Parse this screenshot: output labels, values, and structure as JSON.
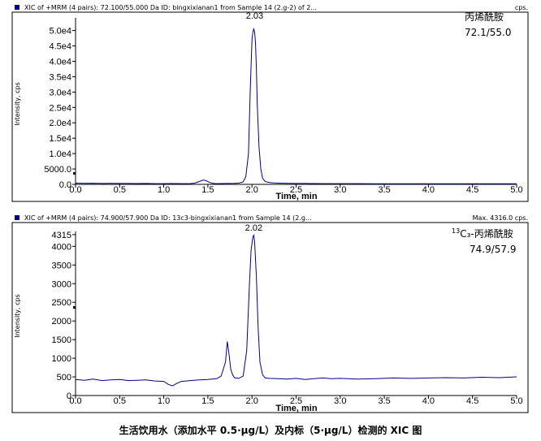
{
  "caption": "生活饮用水（添加水平 0.5·μg/L）及内标（5·μg/L）检测的 XIC 图",
  "colors": {
    "trace": "#00008b",
    "marker": "#000080"
  },
  "chart_data": [
    {
      "type": "line",
      "header_left": "XIC of +MRM (4 pairs): 72.100/55.000 Da ID: bingxixianan1 from Sample 14 (2.g-2) of 2...",
      "header_right": "cps.",
      "xlabel": "Time, min",
      "ylabel": "Intensity, cps",
      "xlim": [
        0,
        5.0
      ],
      "ylim": [
        0,
        52000
      ],
      "x_ticks": [
        0.0,
        0.5,
        1.0,
        1.5,
        2.0,
        2.5,
        3.0,
        3.5,
        4.0,
        4.5,
        5.0
      ],
      "x_tick_labels": [
        "0.0",
        "0.5",
        "1.0",
        "1.5",
        "2.0",
        "2.5",
        "3.0",
        "3.5",
        "4.0",
        "4.5",
        "5.0"
      ],
      "y_ticks": [
        0,
        5000,
        10000,
        15000,
        20000,
        25000,
        30000,
        35000,
        40000,
        45000,
        50000
      ],
      "y_tick_labels": [
        "0.0",
        "5000.0",
        "1.0e4",
        "1.5e4",
        "2.0e4",
        "2.5e4",
        "3.0e4",
        "3.5e4",
        "4.0e4",
        "4.5e4",
        "5.0e4"
      ],
      "peak_label": "2.03",
      "peak_label_x": 2.03,
      "annotation": [
        "丙烯酰胺",
        "72.1/55.0"
      ],
      "series": [
        {
          "x": [
            0.0,
            0.1,
            0.2,
            0.3,
            0.4,
            0.5,
            0.6,
            0.7,
            0.8,
            0.9,
            1.0,
            1.1,
            1.2,
            1.3,
            1.35,
            1.4,
            1.45,
            1.48,
            1.52,
            1.56,
            1.6,
            1.65,
            1.7,
            1.75,
            1.8,
            1.85,
            1.9,
            1.93,
            1.96,
            1.98,
            2.0,
            2.01,
            2.02,
            2.03,
            2.04,
            2.05,
            2.06,
            2.08,
            2.1,
            2.12,
            2.15,
            2.2,
            2.25,
            2.3,
            2.4,
            2.5,
            2.6,
            2.7,
            2.8,
            2.9,
            3.0,
            3.2,
            3.4,
            3.6,
            3.8,
            4.0,
            4.2,
            4.4,
            4.6,
            4.8,
            5.0
          ],
          "y": [
            400,
            350,
            380,
            300,
            320,
            280,
            300,
            260,
            280,
            250,
            240,
            260,
            250,
            240,
            400,
            900,
            1400,
            1200,
            600,
            300,
            250,
            260,
            280,
            300,
            320,
            400,
            800,
            2500,
            10000,
            30000,
            47000,
            49500,
            50500,
            49500,
            46000,
            38000,
            26000,
            12000,
            5000,
            2000,
            900,
            600,
            450,
            400,
            350,
            300,
            280,
            260,
            250,
            240,
            240,
            230,
            220,
            220,
            210,
            200,
            200,
            190,
            190,
            180,
            180
          ]
        }
      ]
    },
    {
      "type": "line",
      "header_left": "XIC of +MRM (4 pairs): 74.900/57.900 Da ID: 13c3-bingxixianan1 from Sample 14 (2.g...",
      "header_right": "Max. 4316.0 cps.",
      "xlabel": "Time, min",
      "ylabel": "Intensity, cps",
      "xlim": [
        0,
        5.0
      ],
      "ylim": [
        0,
        4400
      ],
      "x_ticks": [
        0.0,
        0.5,
        1.0,
        1.5,
        2.0,
        2.5,
        3.0,
        3.5,
        4.0,
        4.5,
        5.0
      ],
      "x_tick_labels": [
        "0.0",
        "0.5",
        "1.0",
        "1.5",
        "2.0",
        "2.5",
        "3.0",
        "3.5",
        "4.0",
        "4.5",
        "5.0"
      ],
      "y_ticks": [
        0,
        500,
        1000,
        1500,
        2000,
        2500,
        3000,
        3500,
        4000,
        4315
      ],
      "y_tick_labels": [
        "0",
        "500",
        "1000",
        "1500",
        "2000",
        "2500",
        "3000",
        "3500",
        "4000",
        "4315"
      ],
      "peak_label": "2.02",
      "peak_label_x": 2.02,
      "annotation_prefix": "13",
      "annotation": [
        "C₃-丙烯酰胺",
        "74.9/57.9"
      ],
      "series": [
        {
          "x": [
            0.0,
            0.1,
            0.2,
            0.3,
            0.4,
            0.5,
            0.6,
            0.7,
            0.8,
            0.9,
            1.0,
            1.05,
            1.1,
            1.15,
            1.2,
            1.3,
            1.4,
            1.5,
            1.6,
            1.65,
            1.7,
            1.72,
            1.74,
            1.76,
            1.78,
            1.8,
            1.85,
            1.9,
            1.94,
            1.97,
            1.99,
            2.01,
            2.02,
            2.03,
            2.05,
            2.07,
            2.09,
            2.12,
            2.15,
            2.2,
            2.3,
            2.4,
            2.5,
            2.6,
            2.7,
            2.8,
            2.9,
            3.0,
            3.2,
            3.4,
            3.6,
            3.8,
            4.0,
            4.2,
            4.4,
            4.6,
            4.8,
            5.0
          ],
          "y": [
            430,
            410,
            440,
            400,
            420,
            430,
            400,
            410,
            420,
            390,
            380,
            300,
            260,
            330,
            380,
            400,
            420,
            430,
            450,
            520,
            900,
            1450,
            1100,
            700,
            560,
            480,
            460,
            520,
            1200,
            2900,
            3900,
            4250,
            4300,
            4100,
            3200,
            1800,
            900,
            560,
            470,
            460,
            450,
            440,
            460,
            430,
            450,
            470,
            450,
            460,
            440,
            450,
            470,
            460,
            470,
            480,
            470,
            490,
            480,
            500
          ]
        }
      ]
    }
  ]
}
